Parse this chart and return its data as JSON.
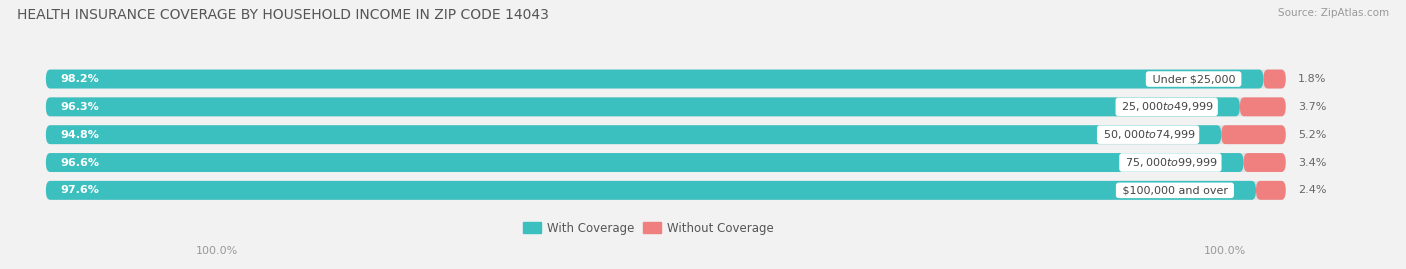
{
  "title": "HEALTH INSURANCE COVERAGE BY HOUSEHOLD INCOME IN ZIP CODE 14043",
  "source": "Source: ZipAtlas.com",
  "categories": [
    "Under $25,000",
    "$25,000 to $49,999",
    "$50,000 to $74,999",
    "$75,000 to $99,999",
    "$100,000 and over"
  ],
  "with_coverage": [
    98.2,
    96.3,
    94.8,
    96.6,
    97.6
  ],
  "without_coverage": [
    1.8,
    3.7,
    5.2,
    3.4,
    2.4
  ],
  "color_with": "#3BBFBF",
  "color_without": "#F08080",
  "bg_color": "#f2f2f2",
  "bar_bg_color": "#e0e0e0",
  "title_fontsize": 10,
  "label_fontsize": 8,
  "cat_fontsize": 8,
  "tick_fontsize": 8,
  "bar_height": 0.68,
  "bar_gap": 0.32,
  "x_left_label": "100.0%",
  "x_right_label": "100.0%",
  "total_width": 100
}
